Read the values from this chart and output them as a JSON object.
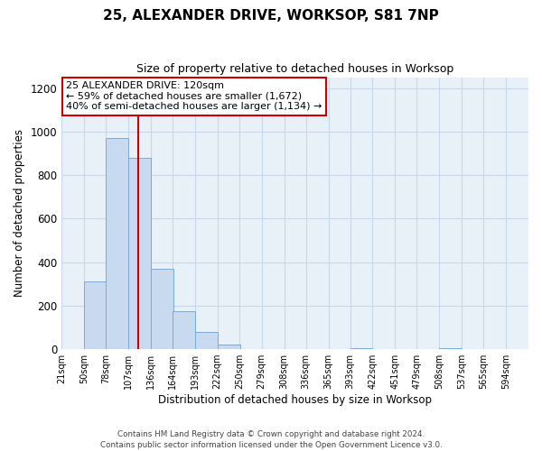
{
  "title": "25, ALEXANDER DRIVE, WORKSOP, S81 7NP",
  "subtitle": "Size of property relative to detached houses in Worksop",
  "xlabel": "Distribution of detached houses by size in Worksop",
  "ylabel": "Number of detached properties",
  "bin_labels": [
    "21sqm",
    "50sqm",
    "78sqm",
    "107sqm",
    "136sqm",
    "164sqm",
    "193sqm",
    "222sqm",
    "250sqm",
    "279sqm",
    "308sqm",
    "336sqm",
    "365sqm",
    "393sqm",
    "422sqm",
    "451sqm",
    "479sqm",
    "508sqm",
    "537sqm",
    "565sqm",
    "594sqm"
  ],
  "bin_left_edges": [
    21,
    50,
    78,
    107,
    136,
    164,
    193,
    222,
    250,
    279,
    308,
    336,
    365,
    393,
    422,
    451,
    479,
    508,
    537,
    565,
    594
  ],
  "bar_heights": [
    0,
    310,
    970,
    880,
    370,
    175,
    80,
    20,
    0,
    0,
    0,
    0,
    0,
    5,
    0,
    0,
    0,
    5,
    0,
    0
  ],
  "bar_color": "#c8daf0",
  "bar_edge_color": "#7baad4",
  "marker_value": 120,
  "marker_color": "#cc0000",
  "ylim": [
    0,
    1250
  ],
  "yticks": [
    0,
    200,
    400,
    600,
    800,
    1000,
    1200
  ],
  "annotation_line1": "25 ALEXANDER DRIVE: 120sqm",
  "annotation_line2": "← 59% of detached houses are smaller (1,672)",
  "annotation_line3": "40% of semi-detached houses are larger (1,134) →",
  "footer_line1": "Contains HM Land Registry data © Crown copyright and database right 2024.",
  "footer_line2": "Contains public sector information licensed under the Open Government Licence v3.0.",
  "background_color": "#ffffff",
  "plot_bg_color": "#e8f0f8",
  "grid_color": "#c8d8e8"
}
